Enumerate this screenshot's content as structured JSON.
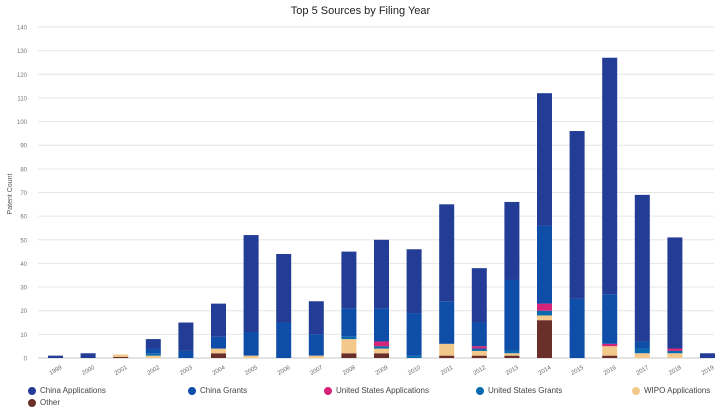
{
  "chart_data": {
    "type": "bar",
    "stacked": true,
    "title": "Top 5 Sources by Filing Year",
    "xlabel": "",
    "ylabel": "Patent Count",
    "ylim": [
      0,
      140
    ],
    "yticks": [
      0,
      10,
      20,
      30,
      40,
      50,
      60,
      70,
      80,
      90,
      100,
      110,
      120,
      130,
      140
    ],
    "grid": true,
    "legend_position": "bottom",
    "categories": [
      "1999",
      "2000",
      "2001",
      "2002",
      "2003",
      "2004",
      "2005",
      "2006",
      "2007",
      "2008",
      "2009",
      "2010",
      "2011",
      "2012",
      "2013",
      "2014",
      "2015",
      "2016",
      "2017",
      "2018",
      "2019"
    ],
    "series": [
      {
        "name": "Other",
        "color": "#6b2f2a",
        "values": [
          0,
          0,
          0.5,
          0,
          0,
          2,
          0,
          0,
          0,
          2,
          2,
          0,
          1,
          1,
          1,
          16,
          0,
          1,
          0,
          0,
          0
        ]
      },
      {
        "name": "WIPO Applications",
        "color": "#f3c98b",
        "values": [
          0,
          0,
          1,
          1,
          0,
          2,
          1,
          0,
          1,
          6,
          2,
          0,
          5,
          2,
          1,
          2,
          0,
          4,
          2,
          2,
          0
        ]
      },
      {
        "name": "United States Grants",
        "color": "#0a6ab0",
        "values": [
          0,
          0,
          0,
          1,
          0,
          0,
          0,
          0,
          0,
          1,
          1,
          1,
          0,
          1,
          1,
          2,
          0,
          0,
          2,
          1,
          0
        ]
      },
      {
        "name": "United States Applications",
        "color": "#d6247a",
        "values": [
          0,
          0,
          0,
          0,
          0,
          0,
          0,
          0,
          0,
          0,
          2,
          0,
          0,
          1,
          0,
          3,
          0,
          1,
          0,
          1,
          0
        ]
      },
      {
        "name": "China Grants",
        "color": "#0e4da8",
        "values": [
          0,
          0,
          0,
          2,
          3,
          5,
          10,
          15,
          9,
          12,
          14,
          18,
          18,
          10,
          30,
          33,
          25,
          21,
          3,
          0,
          0
        ]
      },
      {
        "name": "China Applications",
        "color": "#233d96",
        "values": [
          1,
          2,
          0,
          4,
          12,
          14,
          41,
          29,
          14,
          24,
          29,
          27,
          41,
          23,
          33,
          56,
          71,
          100,
          62,
          47,
          2
        ]
      }
    ]
  }
}
